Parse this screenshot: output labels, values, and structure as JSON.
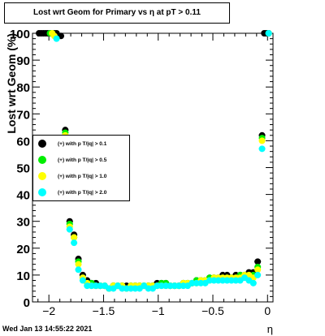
{
  "chart_data": {
    "type": "scatter",
    "title": "Lost wrt Geom for Primary vs   η at pT > 0.11",
    "xlabel": "η",
    "ylabel": "Lost wrt Geom (%)",
    "xlim": [
      -2.15,
      0.05
    ],
    "ylim": [
      0,
      100
    ],
    "xticks": [
      -2,
      -1.5,
      -1,
      -0.5,
      0
    ],
    "xtick_labels": [
      "−2",
      "−1.5",
      "−1",
      "−0.5",
      "0"
    ],
    "yticks": [
      0,
      10,
      20,
      30,
      40,
      50,
      60,
      70,
      80,
      90,
      100
    ],
    "ytick_labels": [
      "0",
      "10",
      "20",
      "30",
      "40",
      "50",
      "60",
      "70",
      "80",
      "90",
      "100"
    ],
    "legend_position": "left-middle",
    "series": [
      {
        "name": "(+) with p T/|q| > 0.1",
        "color": "#000000",
        "x": [
          -2.09,
          -2.07,
          -2.05,
          -2.03,
          -2.01,
          -1.99,
          -1.95,
          -1.93,
          -1.89,
          -1.85,
          -1.81,
          -1.77,
          -1.73,
          -1.69,
          -1.65,
          -1.61,
          -1.57,
          -1.53,
          -1.49,
          -1.45,
          -1.41,
          -1.37,
          -1.33,
          -1.29,
          -1.25,
          -1.21,
          -1.17,
          -1.13,
          -1.09,
          -1.05,
          -1.01,
          -0.97,
          -0.93,
          -0.89,
          -0.85,
          -0.81,
          -0.77,
          -0.73,
          -0.69,
          -0.65,
          -0.61,
          -0.57,
          -0.53,
          -0.49,
          -0.45,
          -0.41,
          -0.37,
          -0.33,
          -0.29,
          -0.25,
          -0.21,
          -0.17,
          -0.13,
          -0.09,
          -0.05,
          -0.03,
          -0.01,
          0.01
        ],
        "y": [
          100,
          100,
          100,
          100,
          100,
          100,
          100,
          100,
          99,
          64,
          30,
          25,
          16,
          10,
          8,
          7,
          7,
          6,
          6,
          5,
          6,
          6,
          6,
          6,
          6,
          6,
          6,
          6,
          6,
          6,
          7,
          7,
          7,
          6,
          6,
          6,
          7,
          7,
          7,
          8,
          8,
          8,
          9,
          9,
          9,
          10,
          10,
          9,
          10,
          10,
          10,
          11,
          11,
          15,
          62,
          100,
          100,
          100
        ]
      },
      {
        "name": "(+) with p T/|q| > 0.5",
        "color": "#00ee00",
        "x": [
          -1.99,
          -1.97,
          -1.85,
          -1.81,
          -1.77,
          -1.73,
          -1.69,
          -1.65,
          -1.61,
          -1.57,
          -1.53,
          -1.49,
          -1.45,
          -1.41,
          -1.37,
          -1.33,
          -1.29,
          -1.25,
          -1.21,
          -1.17,
          -1.13,
          -1.09,
          -1.05,
          -1.01,
          -0.97,
          -0.93,
          -0.89,
          -0.85,
          -0.81,
          -0.77,
          -0.73,
          -0.69,
          -0.65,
          -0.61,
          -0.57,
          -0.53,
          -0.49,
          -0.45,
          -0.41,
          -0.37,
          -0.33,
          -0.29,
          -0.25,
          -0.21,
          -0.17,
          -0.13,
          -0.09,
          -0.05,
          0.01
        ],
        "y": [
          100,
          100,
          63,
          29,
          24,
          15,
          9,
          7,
          7,
          6,
          6,
          6,
          5,
          6,
          6,
          6,
          5,
          6,
          6,
          6,
          6,
          6,
          6,
          6,
          7,
          7,
          6,
          6,
          6,
          7,
          7,
          7,
          8,
          8,
          8,
          9,
          9,
          9,
          9,
          9,
          9,
          9,
          10,
          10,
          10,
          10,
          13,
          61,
          100
        ]
      },
      {
        "name": "(+) with p T/|q| > 1.0",
        "color": "#ffff00",
        "x": [
          -1.97,
          -1.95,
          -1.85,
          -1.81,
          -1.77,
          -1.73,
          -1.69,
          -1.65,
          -1.61,
          -1.57,
          -1.53,
          -1.49,
          -1.45,
          -1.41,
          -1.37,
          -1.33,
          -1.29,
          -1.25,
          -1.21,
          -1.17,
          -1.13,
          -1.09,
          -1.05,
          -1.01,
          -0.97,
          -0.93,
          -0.89,
          -0.85,
          -0.81,
          -0.77,
          -0.73,
          -0.69,
          -0.65,
          -0.61,
          -0.57,
          -0.53,
          -0.49,
          -0.45,
          -0.41,
          -0.37,
          -0.33,
          -0.29,
          -0.25,
          -0.21,
          -0.17,
          -0.13,
          -0.09,
          -0.05
        ],
        "y": [
          100,
          99,
          62,
          28,
          24,
          14,
          9,
          7,
          6,
          6,
          6,
          6,
          5,
          6,
          6,
          6,
          5,
          6,
          6,
          6,
          6,
          6,
          6,
          6,
          6,
          6,
          6,
          6,
          6,
          7,
          7,
          7,
          7,
          8,
          8,
          8,
          9,
          9,
          9,
          9,
          9,
          9,
          9,
          10,
          10,
          9,
          12,
          60
        ]
      },
      {
        "name": "(+) with p T/|q| > 2.0",
        "color": "#00ffff",
        "x": [
          -1.93,
          -1.85,
          -1.81,
          -1.77,
          -1.73,
          -1.69,
          -1.65,
          -1.61,
          -1.57,
          -1.53,
          -1.49,
          -1.45,
          -1.41,
          -1.37,
          -1.33,
          -1.29,
          -1.25,
          -1.21,
          -1.17,
          -1.13,
          -1.09,
          -1.05,
          -1.01,
          -0.97,
          -0.93,
          -0.89,
          -0.85,
          -0.81,
          -0.77,
          -0.73,
          -0.69,
          -0.65,
          -0.61,
          -0.57,
          -0.53,
          -0.49,
          -0.45,
          -0.41,
          -0.37,
          -0.33,
          -0.29,
          -0.25,
          -0.21,
          -0.17,
          -0.13,
          -0.09,
          -0.05,
          0.01
        ],
        "y": [
          98,
          61,
          27,
          22,
          12,
          8,
          6,
          6,
          6,
          6,
          6,
          5,
          5,
          6,
          5,
          5,
          5,
          5,
          5,
          6,
          5,
          5,
          6,
          6,
          6,
          6,
          6,
          6,
          6,
          6,
          7,
          7,
          7,
          7,
          8,
          8,
          8,
          8,
          8,
          8,
          8,
          8,
          9,
          8,
          7,
          10,
          57,
          100
        ]
      }
    ]
  },
  "footer": {
    "timestamp": "Wed Jan 13 14:55:22 2021"
  }
}
